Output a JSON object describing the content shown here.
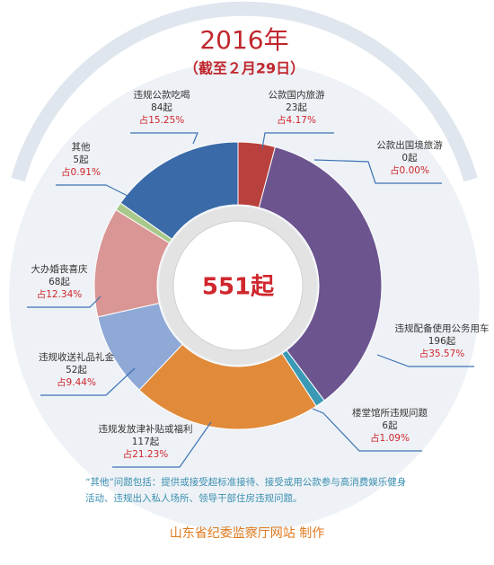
{
  "chart_data": {
    "type": "donut",
    "title": "2016年",
    "subtitle": "（截至２月29日）",
    "categories": [
      "公款国内旅游",
      "公款出国境旅游",
      "违规配备使用公务用车",
      "楼堂馆所违规问题",
      "违规发放津补贴或福利",
      "违规收送礼品礼金",
      "大办婚丧喜庆",
      "其他",
      "违规公款吃喝"
    ],
    "values": [
      23,
      0,
      196,
      6,
      117,
      52,
      68,
      5,
      84
    ],
    "value_labels": [
      "23起",
      "0起",
      "196起",
      "6起",
      "117起",
      "52起",
      "68起",
      "5起",
      "84起"
    ],
    "percents": [
      4.17,
      0.0,
      35.57,
      1.09,
      21.23,
      9.44,
      12.34,
      0.91,
      15.25
    ],
    "percent_labels": [
      "占4.17%",
      "占0.00%",
      "占35.57%",
      "占1.09%",
      "占21.23%",
      "占9.44%",
      "占12.34%",
      "占0.91%",
      "占15.25%"
    ],
    "colors": [
      "#b8413d",
      "#2e5f9e",
      "#6c548f",
      "#3a9ab5",
      "#e08a3a",
      "#8ea9d6",
      "#d99694",
      "#a8c98a",
      "#3a6aa8"
    ],
    "center_label": {
      "value": 551,
      "label": "551起"
    },
    "note": "“其他”问题包括：提供或接受超标准接待、接受或用公款参与高消费娱乐健身活动、违规出入私人场所、领导干部住房违规问题。",
    "footer": "山东省纪委监察厅网站 制作"
  }
}
